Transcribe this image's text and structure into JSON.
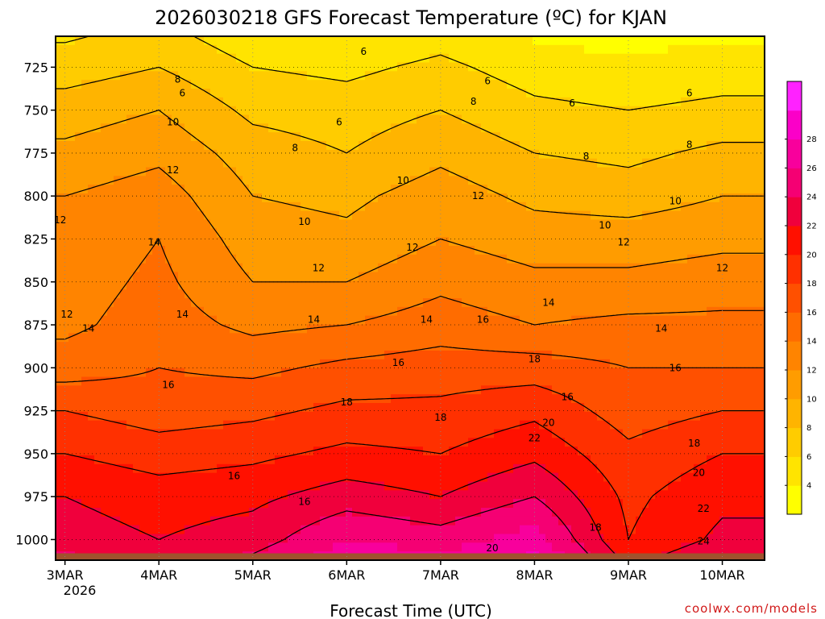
{
  "chart_data": {
    "type": "heatmap",
    "title": "2026030218 GFS Forecast Temperature (ºC) for KJAN",
    "xlabel": "Forecast Time (UTC)",
    "ylabel": "",
    "credit": "coolwx.com/models",
    "x_ticks": [
      "3MAR",
      "4MAR",
      "5MAR",
      "6MAR",
      "7MAR",
      "8MAR",
      "9MAR",
      "10MAR"
    ],
    "x_year_label": "2026",
    "xlim_days": [
      -0.1,
      7.45
    ],
    "y_ticks": [
      725,
      750,
      775,
      800,
      825,
      850,
      875,
      900,
      925,
      950,
      975,
      1000
    ],
    "ylim_hpa": [
      707,
      1012
    ],
    "surface_pressure_hpa": 1008,
    "colorbar": {
      "levels": [
        4,
        6,
        8,
        10,
        12,
        14,
        16,
        18,
        20,
        22,
        24,
        26,
        28
      ],
      "colors": [
        "#ffff00",
        "#ffe400",
        "#ffcc00",
        "#ffb400",
        "#ff9c00",
        "#ff8400",
        "#ff6c00",
        "#ff5000",
        "#ff3000",
        "#ff1000",
        "#f0003c",
        "#f50073",
        "#f8009c",
        "#fb00c8",
        "#ff22ff"
      ]
    },
    "isotherm_levels": [
      6,
      8,
      10,
      12,
      14,
      16,
      18,
      20,
      22,
      24
    ],
    "day_profiles": {
      "description": "approximate temperature (ºC) at each y_tick pressure level, one row per x_tick day",
      "times_days": [
        0,
        1,
        2,
        3,
        4,
        5,
        6,
        7
      ],
      "pressure_hpa": [
        725,
        750,
        775,
        800,
        825,
        850,
        875,
        900,
        925,
        950,
        975,
        1000
      ],
      "temperature_c": [
        [
          7,
          9,
          10.5,
          12,
          12.5,
          13,
          13.5,
          15,
          18,
          20,
          22,
          23
        ],
        [
          8,
          10,
          11.5,
          13,
          14,
          14.5,
          15,
          16,
          17,
          19,
          21,
          22
        ],
        [
          6,
          7.5,
          9,
          10,
          11,
          12,
          13.5,
          15.5,
          17.5,
          19.5,
          21.5,
          23
        ],
        [
          5.5,
          7,
          8,
          9.5,
          10.5,
          12,
          14,
          16.5,
          18.5,
          20.5,
          23,
          26
        ],
        [
          6.5,
          8,
          9.5,
          11,
          12,
          13.5,
          15,
          17,
          18.5,
          20,
          22,
          25
        ],
        [
          5,
          6.5,
          8,
          9.5,
          11,
          12.5,
          14,
          17,
          19.5,
          21.5,
          24,
          27
        ],
        [
          4.5,
          6,
          7.5,
          9,
          11,
          12.5,
          14.5,
          16,
          17,
          18.5,
          19.5,
          20
        ],
        [
          5,
          6.5,
          8.5,
          10,
          11.5,
          13,
          14.5,
          16,
          18,
          20,
          21.5,
          22.5
        ]
      ]
    },
    "annotations": [
      {
        "text": "6",
        "time_days": 3.18,
        "pressure_hpa": 716
      },
      {
        "text": "6",
        "time_days": 1.25,
        "pressure_hpa": 740
      },
      {
        "text": "6",
        "time_days": 2.92,
        "pressure_hpa": 757
      },
      {
        "text": "6",
        "time_days": 4.5,
        "pressure_hpa": 733
      },
      {
        "text": "6",
        "time_days": 5.4,
        "pressure_hpa": 746
      },
      {
        "text": "6",
        "time_days": 6.65,
        "pressure_hpa": 740
      },
      {
        "text": "8",
        "time_days": 1.2,
        "pressure_hpa": 732
      },
      {
        "text": "8",
        "time_days": 2.45,
        "pressure_hpa": 772
      },
      {
        "text": "8",
        "time_days": 4.35,
        "pressure_hpa": 745
      },
      {
        "text": "8",
        "time_days": 5.55,
        "pressure_hpa": 777
      },
      {
        "text": "8",
        "time_days": 6.65,
        "pressure_hpa": 770
      },
      {
        "text": "10",
        "time_days": 1.15,
        "pressure_hpa": 757
      },
      {
        "text": "10",
        "time_days": 3.6,
        "pressure_hpa": 791
      },
      {
        "text": "10",
        "time_days": 2.55,
        "pressure_hpa": 815
      },
      {
        "text": "10",
        "time_days": 5.75,
        "pressure_hpa": 817
      },
      {
        "text": "10",
        "time_days": 6.5,
        "pressure_hpa": 803
      },
      {
        "text": "12",
        "time_days": 1.15,
        "pressure_hpa": 785
      },
      {
        "text": "12",
        "time_days": -0.05,
        "pressure_hpa": 814
      },
      {
        "text": "12",
        "time_days": 3.7,
        "pressure_hpa": 830
      },
      {
        "text": "12",
        "time_days": 4.4,
        "pressure_hpa": 800
      },
      {
        "text": "12",
        "time_days": 2.7,
        "pressure_hpa": 842
      },
      {
        "text": "12",
        "time_days": 0.02,
        "pressure_hpa": 869
      },
      {
        "text": "12",
        "time_days": 5.95,
        "pressure_hpa": 827
      },
      {
        "text": "12",
        "time_days": 7.0,
        "pressure_hpa": 842
      },
      {
        "text": "14",
        "time_days": 0.95,
        "pressure_hpa": 827
      },
      {
        "text": "14",
        "time_days": 0.25,
        "pressure_hpa": 877
      },
      {
        "text": "14",
        "time_days": 1.25,
        "pressure_hpa": 869
      },
      {
        "text": "14",
        "time_days": 2.65,
        "pressure_hpa": 872
      },
      {
        "text": "14",
        "time_days": 3.85,
        "pressure_hpa": 872
      },
      {
        "text": "14",
        "time_days": 5.15,
        "pressure_hpa": 862
      },
      {
        "text": "14",
        "time_days": 6.35,
        "pressure_hpa": 877
      },
      {
        "text": "16",
        "time_days": 4.45,
        "pressure_hpa": 872
      },
      {
        "text": "16",
        "time_days": 1.1,
        "pressure_hpa": 910
      },
      {
        "text": "16",
        "time_days": 3.55,
        "pressure_hpa": 897
      },
      {
        "text": "16",
        "time_days": 5.35,
        "pressure_hpa": 917
      },
      {
        "text": "16",
        "time_days": 6.5,
        "pressure_hpa": 900
      },
      {
        "text": "16",
        "time_days": 1.8,
        "pressure_hpa": 963
      },
      {
        "text": "16",
        "time_days": 2.55,
        "pressure_hpa": 978
      },
      {
        "text": "18",
        "time_days": 3.0,
        "pressure_hpa": 920
      },
      {
        "text": "18",
        "time_days": 5.0,
        "pressure_hpa": 895
      },
      {
        "text": "18",
        "time_days": 4.0,
        "pressure_hpa": 929
      },
      {
        "text": "18",
        "time_days": 6.7,
        "pressure_hpa": 944
      },
      {
        "text": "18",
        "time_days": 5.65,
        "pressure_hpa": 993
      },
      {
        "text": "20",
        "time_days": 5.15,
        "pressure_hpa": 932
      },
      {
        "text": "20",
        "time_days": 4.55,
        "pressure_hpa": 1005
      },
      {
        "text": "20",
        "time_days": 6.75,
        "pressure_hpa": 961
      },
      {
        "text": "22",
        "time_days": 5.0,
        "pressure_hpa": 941
      },
      {
        "text": "22",
        "time_days": 6.8,
        "pressure_hpa": 982
      },
      {
        "text": "24",
        "time_days": 6.8,
        "pressure_hpa": 1001
      }
    ]
  }
}
